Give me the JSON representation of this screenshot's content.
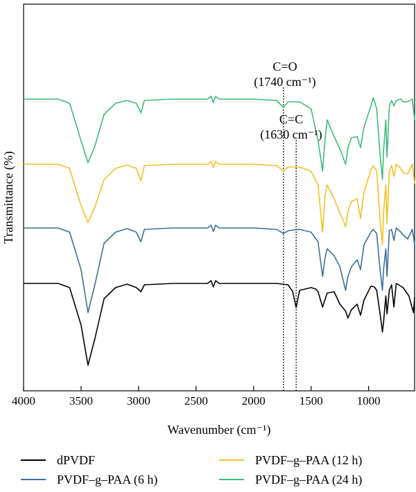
{
  "chart_data": {
    "type": "line",
    "xlabel": "Wavenumber (cm⁻¹)",
    "ylabel": "Transmittance (%)",
    "xlim": [
      4000,
      600
    ],
    "x_reversed": true,
    "x_ticks": [
      4000,
      3500,
      3000,
      2500,
      2000,
      1500,
      1000
    ],
    "y_ticks_shown": false,
    "grid": false,
    "legend_position": "bottom",
    "annotations": [
      {
        "label": "C=O",
        "sublabel": "(1740 cm⁻¹)",
        "x": 1740,
        "style": "dotted vertical line"
      },
      {
        "label": "C=C",
        "sublabel": "(1630 cm⁻¹)",
        "x": 1630,
        "style": "dotted vertical line"
      }
    ],
    "series": [
      {
        "name": "dPVDF",
        "color": "#000000",
        "baseline": 0,
        "points": [
          [
            4000,
            0
          ],
          [
            3700,
            0
          ],
          [
            3600,
            -6
          ],
          [
            3500,
            -60
          ],
          [
            3440,
            -118
          ],
          [
            3380,
            -80
          ],
          [
            3300,
            -22
          ],
          [
            3200,
            -6
          ],
          [
            3100,
            -1
          ],
          [
            3020,
            -6
          ],
          [
            2980,
            -12
          ],
          [
            2950,
            -2
          ],
          [
            2700,
            0
          ],
          [
            2400,
            0
          ],
          [
            2370,
            4
          ],
          [
            2350,
            -5
          ],
          [
            2330,
            4
          ],
          [
            2300,
            0
          ],
          [
            2000,
            0
          ],
          [
            1800,
            0
          ],
          [
            1700,
            -2
          ],
          [
            1660,
            -12
          ],
          [
            1630,
            -35
          ],
          [
            1600,
            -10
          ],
          [
            1500,
            -6
          ],
          [
            1460,
            -8
          ],
          [
            1440,
            -12
          ],
          [
            1400,
            -34
          ],
          [
            1360,
            -14
          ],
          [
            1300,
            -12
          ],
          [
            1250,
            -30
          ],
          [
            1200,
            -40
          ],
          [
            1180,
            -50
          ],
          [
            1150,
            -38
          ],
          [
            1100,
            -30
          ],
          [
            1070,
            -46
          ],
          [
            1040,
            -24
          ],
          [
            980,
            -4
          ],
          [
            950,
            -5
          ],
          [
            930,
            -10
          ],
          [
            900,
            -44
          ],
          [
            880,
            -70
          ],
          [
            870,
            -56
          ],
          [
            850,
            -18
          ],
          [
            840,
            -44
          ],
          [
            820,
            -10
          ],
          [
            800,
            -2
          ],
          [
            780,
            -34
          ],
          [
            760,
            0
          ],
          [
            700,
            -6
          ],
          [
            650,
            -18
          ],
          [
            610,
            -42
          ],
          [
            600,
            -20
          ]
        ]
      },
      {
        "name": "PVDF–g–PAA (6 h)",
        "color": "#3a6f9c",
        "baseline": 0,
        "points": [
          [
            4000,
            0
          ],
          [
            3700,
            0
          ],
          [
            3600,
            -6
          ],
          [
            3500,
            -60
          ],
          [
            3440,
            -122
          ],
          [
            3380,
            -82
          ],
          [
            3300,
            -22
          ],
          [
            3200,
            -6
          ],
          [
            3100,
            -1
          ],
          [
            3020,
            -6
          ],
          [
            2980,
            -20
          ],
          [
            2950,
            -2
          ],
          [
            2700,
            0
          ],
          [
            2400,
            0
          ],
          [
            2370,
            4
          ],
          [
            2350,
            -5
          ],
          [
            2330,
            4
          ],
          [
            2300,
            0
          ],
          [
            2000,
            0
          ],
          [
            1800,
            -2
          ],
          [
            1740,
            -8
          ],
          [
            1700,
            -4
          ],
          [
            1600,
            -2
          ],
          [
            1500,
            -6
          ],
          [
            1440,
            -20
          ],
          [
            1400,
            -70
          ],
          [
            1380,
            -44
          ],
          [
            1360,
            -30
          ],
          [
            1300,
            -40
          ],
          [
            1250,
            -56
          ],
          [
            1200,
            -90
          ],
          [
            1180,
            -70
          ],
          [
            1150,
            -56
          ],
          [
            1100,
            -46
          ],
          [
            1070,
            -60
          ],
          [
            1040,
            -24
          ],
          [
            980,
            -6
          ],
          [
            960,
            -2
          ],
          [
            930,
            -8
          ],
          [
            900,
            -60
          ],
          [
            880,
            -90
          ],
          [
            870,
            -60
          ],
          [
            850,
            -30
          ],
          [
            840,
            -70
          ],
          [
            820,
            -4
          ],
          [
            800,
            -2
          ],
          [
            780,
            -18
          ],
          [
            760,
            0
          ],
          [
            720,
            -6
          ],
          [
            700,
            -10
          ],
          [
            660,
            -16
          ],
          [
            620,
            -2
          ],
          [
            600,
            -24
          ]
        ]
      },
      {
        "name": "PVDF–g–PAA (12 h)",
        "color": "#f5c023",
        "baseline": 0,
        "points": [
          [
            4000,
            0
          ],
          [
            3700,
            0
          ],
          [
            3600,
            -6
          ],
          [
            3500,
            -60
          ],
          [
            3440,
            -84
          ],
          [
            3380,
            -62
          ],
          [
            3300,
            -22
          ],
          [
            3200,
            -6
          ],
          [
            3100,
            -1
          ],
          [
            3020,
            -6
          ],
          [
            2980,
            -24
          ],
          [
            2950,
            -2
          ],
          [
            2700,
            0
          ],
          [
            2400,
            0
          ],
          [
            2370,
            4
          ],
          [
            2350,
            -5
          ],
          [
            2330,
            4
          ],
          [
            2300,
            0
          ],
          [
            2000,
            0
          ],
          [
            1800,
            -2
          ],
          [
            1740,
            -10
          ],
          [
            1700,
            -4
          ],
          [
            1600,
            -4
          ],
          [
            1500,
            -10
          ],
          [
            1440,
            -30
          ],
          [
            1400,
            -98
          ],
          [
            1380,
            -46
          ],
          [
            1360,
            -30
          ],
          [
            1300,
            -50
          ],
          [
            1250,
            -70
          ],
          [
            1200,
            -90
          ],
          [
            1180,
            -68
          ],
          [
            1150,
            -54
          ],
          [
            1100,
            -50
          ],
          [
            1070,
            -78
          ],
          [
            1040,
            -40
          ],
          [
            980,
            -8
          ],
          [
            960,
            -2
          ],
          [
            930,
            -10
          ],
          [
            900,
            -80
          ],
          [
            880,
            -116
          ],
          [
            870,
            -70
          ],
          [
            850,
            -30
          ],
          [
            840,
            -86
          ],
          [
            820,
            -10
          ],
          [
            800,
            -2
          ],
          [
            780,
            -18
          ],
          [
            760,
            0
          ],
          [
            720,
            -6
          ],
          [
            700,
            -12
          ],
          [
            660,
            -14
          ],
          [
            620,
            0
          ],
          [
            600,
            -28
          ]
        ]
      },
      {
        "name": "PVDF–g–PAA (24 h)",
        "color": "#3dbb7a",
        "baseline": 0,
        "points": [
          [
            4000,
            0
          ],
          [
            3700,
            0
          ],
          [
            3600,
            -6
          ],
          [
            3500,
            -60
          ],
          [
            3440,
            -92
          ],
          [
            3380,
            -68
          ],
          [
            3300,
            -22
          ],
          [
            3200,
            -6
          ],
          [
            3100,
            -2
          ],
          [
            3020,
            -6
          ],
          [
            2980,
            -20
          ],
          [
            2950,
            -2
          ],
          [
            2700,
            0
          ],
          [
            2400,
            0
          ],
          [
            2370,
            4
          ],
          [
            2350,
            -5
          ],
          [
            2330,
            4
          ],
          [
            2300,
            0
          ],
          [
            2000,
            0
          ],
          [
            1800,
            -2
          ],
          [
            1740,
            -12
          ],
          [
            1700,
            -4
          ],
          [
            1600,
            -4
          ],
          [
            1500,
            -14
          ],
          [
            1440,
            -60
          ],
          [
            1400,
            -104
          ],
          [
            1380,
            -60
          ],
          [
            1360,
            -30
          ],
          [
            1300,
            -54
          ],
          [
            1250,
            -72
          ],
          [
            1200,
            -94
          ],
          [
            1180,
            -70
          ],
          [
            1150,
            -56
          ],
          [
            1100,
            -54
          ],
          [
            1070,
            -70
          ],
          [
            1040,
            -40
          ],
          [
            980,
            -10
          ],
          [
            960,
            2
          ],
          [
            930,
            -14
          ],
          [
            900,
            -80
          ],
          [
            880,
            -116
          ],
          [
            870,
            -74
          ],
          [
            850,
            -30
          ],
          [
            840,
            -84
          ],
          [
            820,
            -10
          ],
          [
            800,
            -2
          ],
          [
            780,
            -10
          ],
          [
            760,
            -2
          ],
          [
            720,
            0
          ],
          [
            700,
            -4
          ],
          [
            660,
            -4
          ],
          [
            620,
            0
          ],
          [
            600,
            -30
          ]
        ]
      }
    ]
  },
  "legend": {
    "items": [
      {
        "label": "dPVDF",
        "color": "#000000"
      },
      {
        "label": "PVDF–g–PAA (6 h)",
        "color": "#3a6f9c"
      },
      {
        "label": "PVDF–g–PAA (12 h)",
        "color": "#f5c023"
      },
      {
        "label": "PVDF–g–PAA (24 h)",
        "color": "#3dbb7a"
      }
    ]
  }
}
